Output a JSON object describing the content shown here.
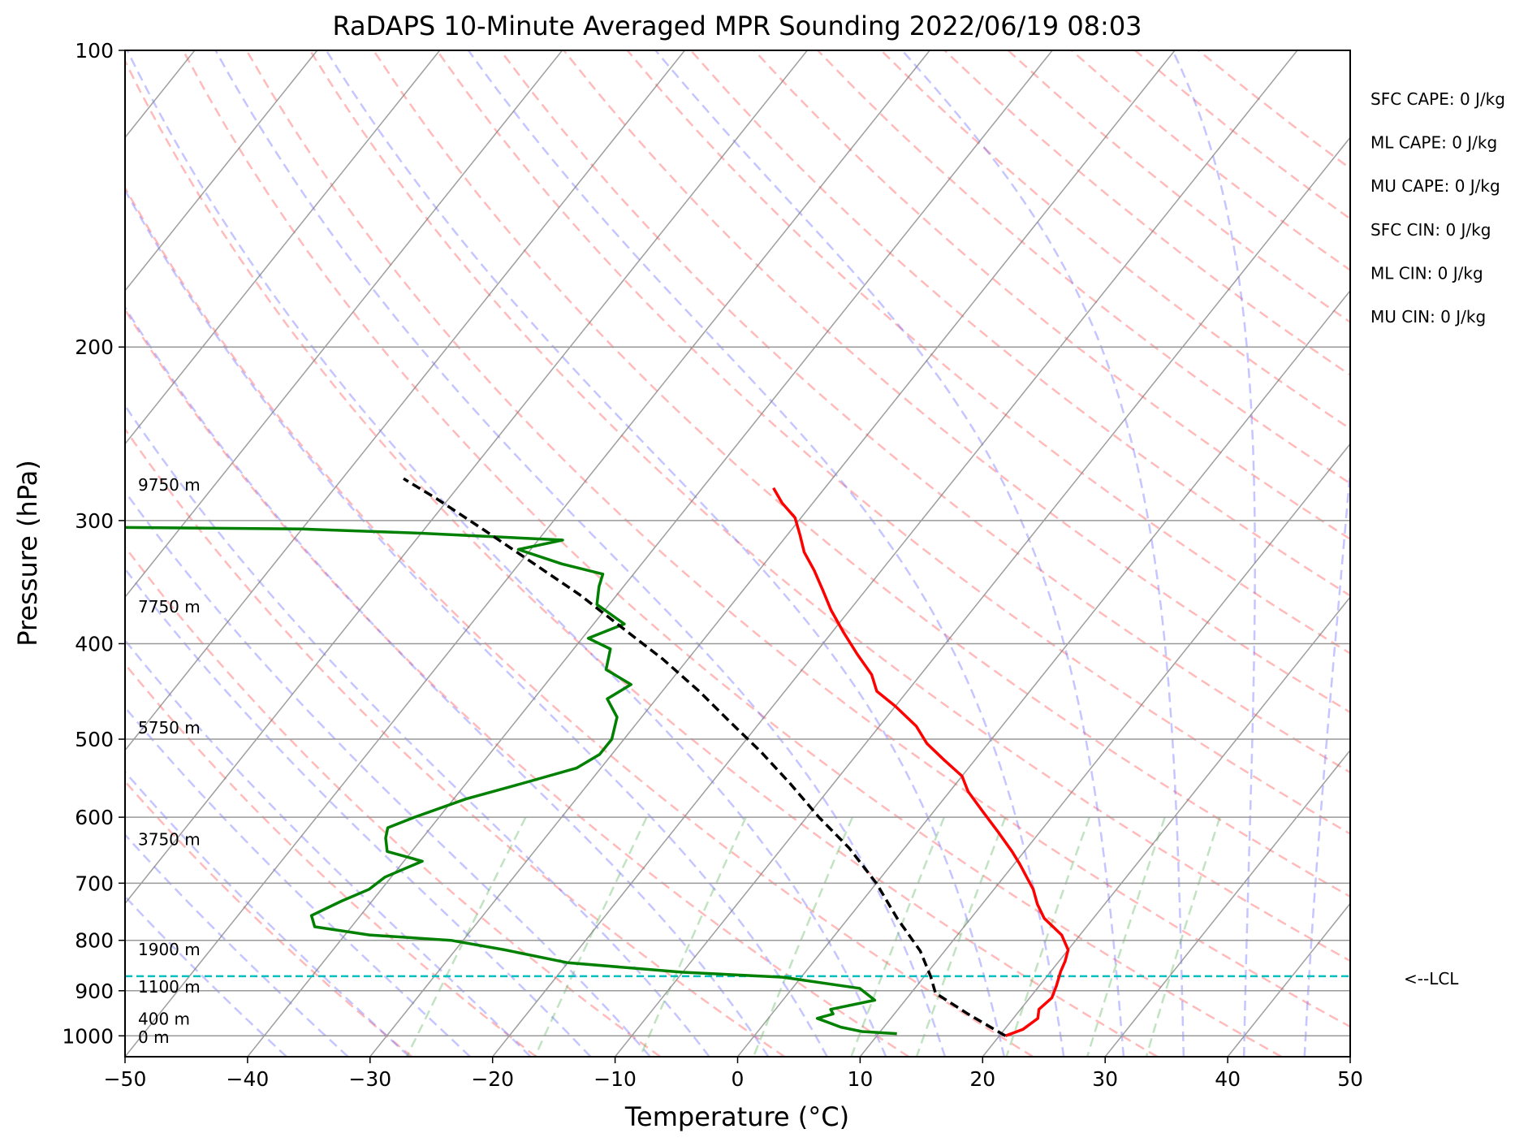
{
  "chart_data": {
    "type": "line",
    "title": "RaDAPS 10-Minute Averaged MPR Sounding 2022/06/19 08:03",
    "xlabel": "Temperature (°C)",
    "ylabel": "Pressure (hPa)",
    "xlim": [
      -50,
      50
    ],
    "ylim": [
      1050,
      100
    ],
    "y_scale": "log",
    "skew": true,
    "grid": true,
    "x_ticks": [
      -50,
      -40,
      -30,
      -20,
      -10,
      0,
      10,
      20,
      30,
      40,
      50
    ],
    "x_tick_labels": [
      "−50",
      "−40",
      "−30",
      "−20",
      "−10",
      "0",
      "10",
      "20",
      "30",
      "40",
      "50"
    ],
    "y_ticks": [
      100,
      200,
      300,
      400,
      500,
      600,
      700,
      800,
      900,
      1000
    ],
    "y_tick_labels": [
      "100",
      "200",
      "300",
      "400",
      "500",
      "600",
      "700",
      "800",
      "900",
      "1000"
    ],
    "height_labels": [
      {
        "text": "9750 m",
        "pressure": 276
      },
      {
        "text": "7750 m",
        "pressure": 367
      },
      {
        "text": "5750 m",
        "pressure": 487
      },
      {
        "text": "3750 m",
        "pressure": 632
      },
      {
        "text": "1900 m",
        "pressure": 817
      },
      {
        "text": "1100 m",
        "pressure": 892
      },
      {
        "text": "400 m",
        "pressure": 961
      },
      {
        "text": "0 m",
        "pressure": 1003
      }
    ],
    "indices": [
      "SFC CAPE: 0 J/kg",
      "ML CAPE: 0 J/kg",
      "MU CAPE: 0 J/kg",
      "SFC CIN: 0 J/kg",
      "ML CIN: 0 J/kg",
      "MU CIN: 0 J/kg"
    ],
    "lcl": {
      "pressure": 870,
      "label": "<--LCL"
    },
    "colors": {
      "temperature": "#ff0000",
      "dewpoint": "#008000",
      "parcel": "#000000",
      "lcl": "#00bfbf",
      "dry_adiabats": "#ff6666",
      "moist_adiabats": "#6666ff",
      "mixing_ratio": "#4caf50",
      "isotherms": "#808080",
      "isobars": "#999999"
    },
    "series": [
      {
        "key": "temperature",
        "points": [
          [
            20.5,
            1000
          ],
          [
            21.5,
            985
          ],
          [
            22,
            960
          ],
          [
            21.5,
            940
          ],
          [
            21.8,
            915
          ],
          [
            21.4,
            890
          ],
          [
            20.8,
            860
          ],
          [
            20.5,
            840
          ],
          [
            20,
            818
          ],
          [
            18.5,
            790
          ],
          [
            16,
            760
          ],
          [
            14.5,
            735
          ],
          [
            13.2,
            710
          ],
          [
            12,
            692
          ],
          [
            10.5,
            670
          ],
          [
            9,
            650
          ],
          [
            6.5,
            620
          ],
          [
            4,
            592
          ],
          [
            1.5,
            565
          ],
          [
            0,
            545
          ],
          [
            -2.5,
            525
          ],
          [
            -5,
            505
          ],
          [
            -7,
            485
          ],
          [
            -10,
            463
          ],
          [
            -12.5,
            447
          ],
          [
            -14,
            430
          ],
          [
            -16.5,
            410
          ],
          [
            -19,
            390
          ],
          [
            -21.5,
            370
          ],
          [
            -23.5,
            353
          ],
          [
            -25.5,
            337
          ],
          [
            -27.5,
            323
          ],
          [
            -29,
            310
          ],
          [
            -30.5,
            298
          ],
          [
            -32.5,
            288
          ],
          [
            -34.2,
            278
          ]
        ]
      },
      {
        "key": "dewpoint",
        "points": [
          [
            11.5,
            995
          ],
          [
            8.5,
            990
          ],
          [
            6.5,
            980
          ],
          [
            4,
            960
          ],
          [
            5,
            950
          ],
          [
            4.5,
            940
          ],
          [
            7.5,
            920
          ],
          [
            5.5,
            895
          ],
          [
            -1.5,
            872
          ],
          [
            -10,
            862
          ],
          [
            -20,
            843
          ],
          [
            -26,
            818
          ],
          [
            -31,
            800
          ],
          [
            -38,
            790
          ],
          [
            -43,
            775
          ],
          [
            -44,
            755
          ],
          [
            -42.5,
            730
          ],
          [
            -41,
            710
          ],
          [
            -40.5,
            690
          ],
          [
            -38.5,
            665
          ],
          [
            -42,
            650
          ],
          [
            -43,
            630
          ],
          [
            -43.5,
            615
          ],
          [
            -42,
            600
          ],
          [
            -39,
            575
          ],
          [
            -35.5,
            555
          ],
          [
            -32,
            535
          ],
          [
            -31,
            518
          ],
          [
            -31,
            500
          ],
          [
            -32,
            475
          ],
          [
            -34,
            455
          ],
          [
            -33,
            440
          ],
          [
            -36,
            425
          ],
          [
            -37,
            405
          ],
          [
            -39.5,
            395
          ],
          [
            -37.5,
            382
          ],
          [
            -41,
            365
          ],
          [
            -42,
            350
          ],
          [
            -42.5,
            340
          ],
          [
            -46.5,
            332
          ],
          [
            -51,
            321
          ],
          [
            -48,
            314
          ],
          [
            -60,
            309
          ],
          [
            -70,
            306
          ],
          [
            -95,
            304
          ]
        ]
      },
      {
        "key": "parcel",
        "points": [
          [
            20.5,
            1000
          ],
          [
            16,
            950
          ],
          [
            12,
            905
          ],
          [
            10.5,
            870
          ],
          [
            8,
            820
          ],
          [
            4,
            760
          ],
          [
            0,
            700
          ],
          [
            -4.5,
            645
          ],
          [
            -9,
            600
          ],
          [
            -13.5,
            555
          ],
          [
            -18,
            515
          ],
          [
            -22.5,
            480
          ],
          [
            -27,
            447
          ],
          [
            -32,
            415
          ],
          [
            -37.5,
            385
          ],
          [
            -43,
            357
          ],
          [
            -49,
            331
          ],
          [
            -55,
            307
          ],
          [
            -61,
            285
          ],
          [
            -65,
            272
          ]
        ]
      }
    ]
  }
}
